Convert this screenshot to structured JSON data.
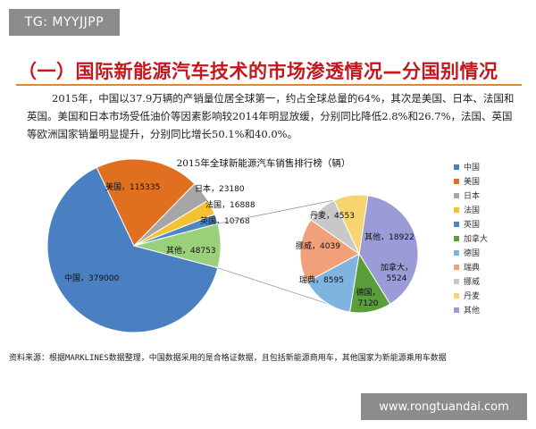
{
  "watermark_top": "TG: MYYJJPP",
  "watermark_bottom": "www.rongtuandai.com",
  "heading": "（一）国际新能源汽车技术的市场渗透情况—分国别情况",
  "paragraph": "2015年，中国以37.9万辆的产销量位居全球第一，约占全球总量的64%，其次是美国、日本、法国和英国。美国和日本市场受低油价等因素影响较2014年明显放缓，分别同比降低2.8%和26.7%，法国、英国等欧洲国家销量明显提升，分别同比增长50.1%和40.0%。",
  "source_note": "资料来源：根据MARKLINES数据整理，中国数据采用的是合格证数据，且包括新能源商用车，其他国家为新能源乘用车数据",
  "colors": {
    "china": "#4a7fc1",
    "usa": "#e0701f",
    "japan": "#a6a6a6",
    "france": "#f2c230",
    "uk": "#4f86c6",
    "other": "#9bd07a",
    "canada": "#5a9e3c",
    "germany": "#7fb3e0",
    "sweden": "#f2a07a",
    "norway": "#c8c8c8",
    "denmark": "#f7d470",
    "others_detail": "#9b9bd8"
  },
  "chart_data": {
    "type": "pie",
    "title": "2015年全球新能源汽车销售排行榜（辆）",
    "main_pie": [
      {
        "name": "中国",
        "label": "中国，379000",
        "value": 379000,
        "color_key": "china"
      },
      {
        "name": "美国",
        "label": "美国，115335",
        "value": 115335,
        "color_key": "usa"
      },
      {
        "name": "日本",
        "label": "日本，23180",
        "value": 23180,
        "color_key": "japan"
      },
      {
        "name": "法国",
        "label": "法国，16888",
        "value": 16888,
        "color_key": "france"
      },
      {
        "name": "英国",
        "label": "英国，10768",
        "value": 10768,
        "color_key": "uk"
      },
      {
        "name": "其他",
        "label": "其他，48753",
        "value": 48753,
        "color_key": "other"
      }
    ],
    "sub_pie": [
      {
        "name": "其他",
        "label": "其他，18922",
        "value": 18922,
        "color_key": "others_detail"
      },
      {
        "name": "加拿大",
        "label": "加拿大，5524",
        "value": 5524,
        "color_key": "canada"
      },
      {
        "name": "德国",
        "label": "德国，7120",
        "value": 7120,
        "color_key": "germany"
      },
      {
        "name": "瑞典",
        "label": "瑞典，8595",
        "value": 8595,
        "color_key": "sweden"
      },
      {
        "name": "挪威",
        "label": "挪威，4039",
        "value": 4039,
        "color_key": "norway"
      },
      {
        "name": "丹麦",
        "label": "丹麦，4553",
        "value": 4553,
        "color_key": "denmark"
      }
    ],
    "legend": [
      {
        "name": "中国",
        "color_key": "china"
      },
      {
        "name": "美国",
        "color_key": "usa"
      },
      {
        "name": "日本",
        "color_key": "japan"
      },
      {
        "name": "法国",
        "color_key": "france"
      },
      {
        "name": "英国",
        "color_key": "uk"
      },
      {
        "name": "加拿大",
        "color_key": "canada"
      },
      {
        "name": "德国",
        "color_key": "germany"
      },
      {
        "name": "瑞典",
        "color_key": "sweden"
      },
      {
        "name": "挪威",
        "color_key": "norway"
      },
      {
        "name": "丹麦",
        "color_key": "denmark"
      },
      {
        "name": "其他",
        "color_key": "others_detail"
      }
    ],
    "legend_position": "right"
  }
}
